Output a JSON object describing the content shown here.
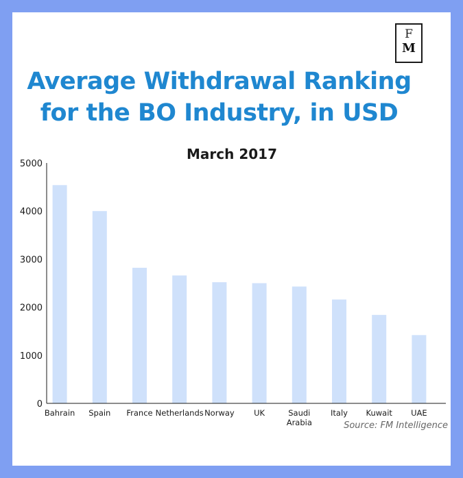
{
  "logo": {
    "line1": "F",
    "line2": "M"
  },
  "title_line1": "Average Withdrawal Ranking",
  "title_line2": "for the BO Industry, in USD",
  "source": "Source: FM Intelligence",
  "colors": {
    "background": "#7f9ff2",
    "title": "#1f87d0",
    "bar": "#cfe1fb",
    "axis": "#1a1a1a"
  },
  "chart_data": {
    "type": "bar",
    "title": "March 2017",
    "xlabel": "",
    "ylabel": "",
    "categories": [
      "Bahrain",
      "Spain",
      "France",
      "Netherlands",
      "Norway",
      "UK",
      "Saudi Arabia",
      "Italy",
      "Kuwait",
      "UAE"
    ],
    "category_label_lines": [
      [
        "Bahrain"
      ],
      [
        "Spain"
      ],
      [
        "France"
      ],
      [
        "Netherlands"
      ],
      [
        "Norway"
      ],
      [
        "UK"
      ],
      [
        "Saudi",
        "Arabia"
      ],
      [
        "Italy"
      ],
      [
        "Kuwait"
      ],
      [
        "UAE"
      ]
    ],
    "values": [
      4540,
      4000,
      2820,
      2660,
      2520,
      2500,
      2430,
      2160,
      1840,
      1420
    ],
    "ylim": [
      0,
      5000
    ],
    "yticks": [
      0,
      1000,
      2000,
      3000,
      4000,
      5000
    ],
    "grid": false,
    "legend": "none"
  }
}
